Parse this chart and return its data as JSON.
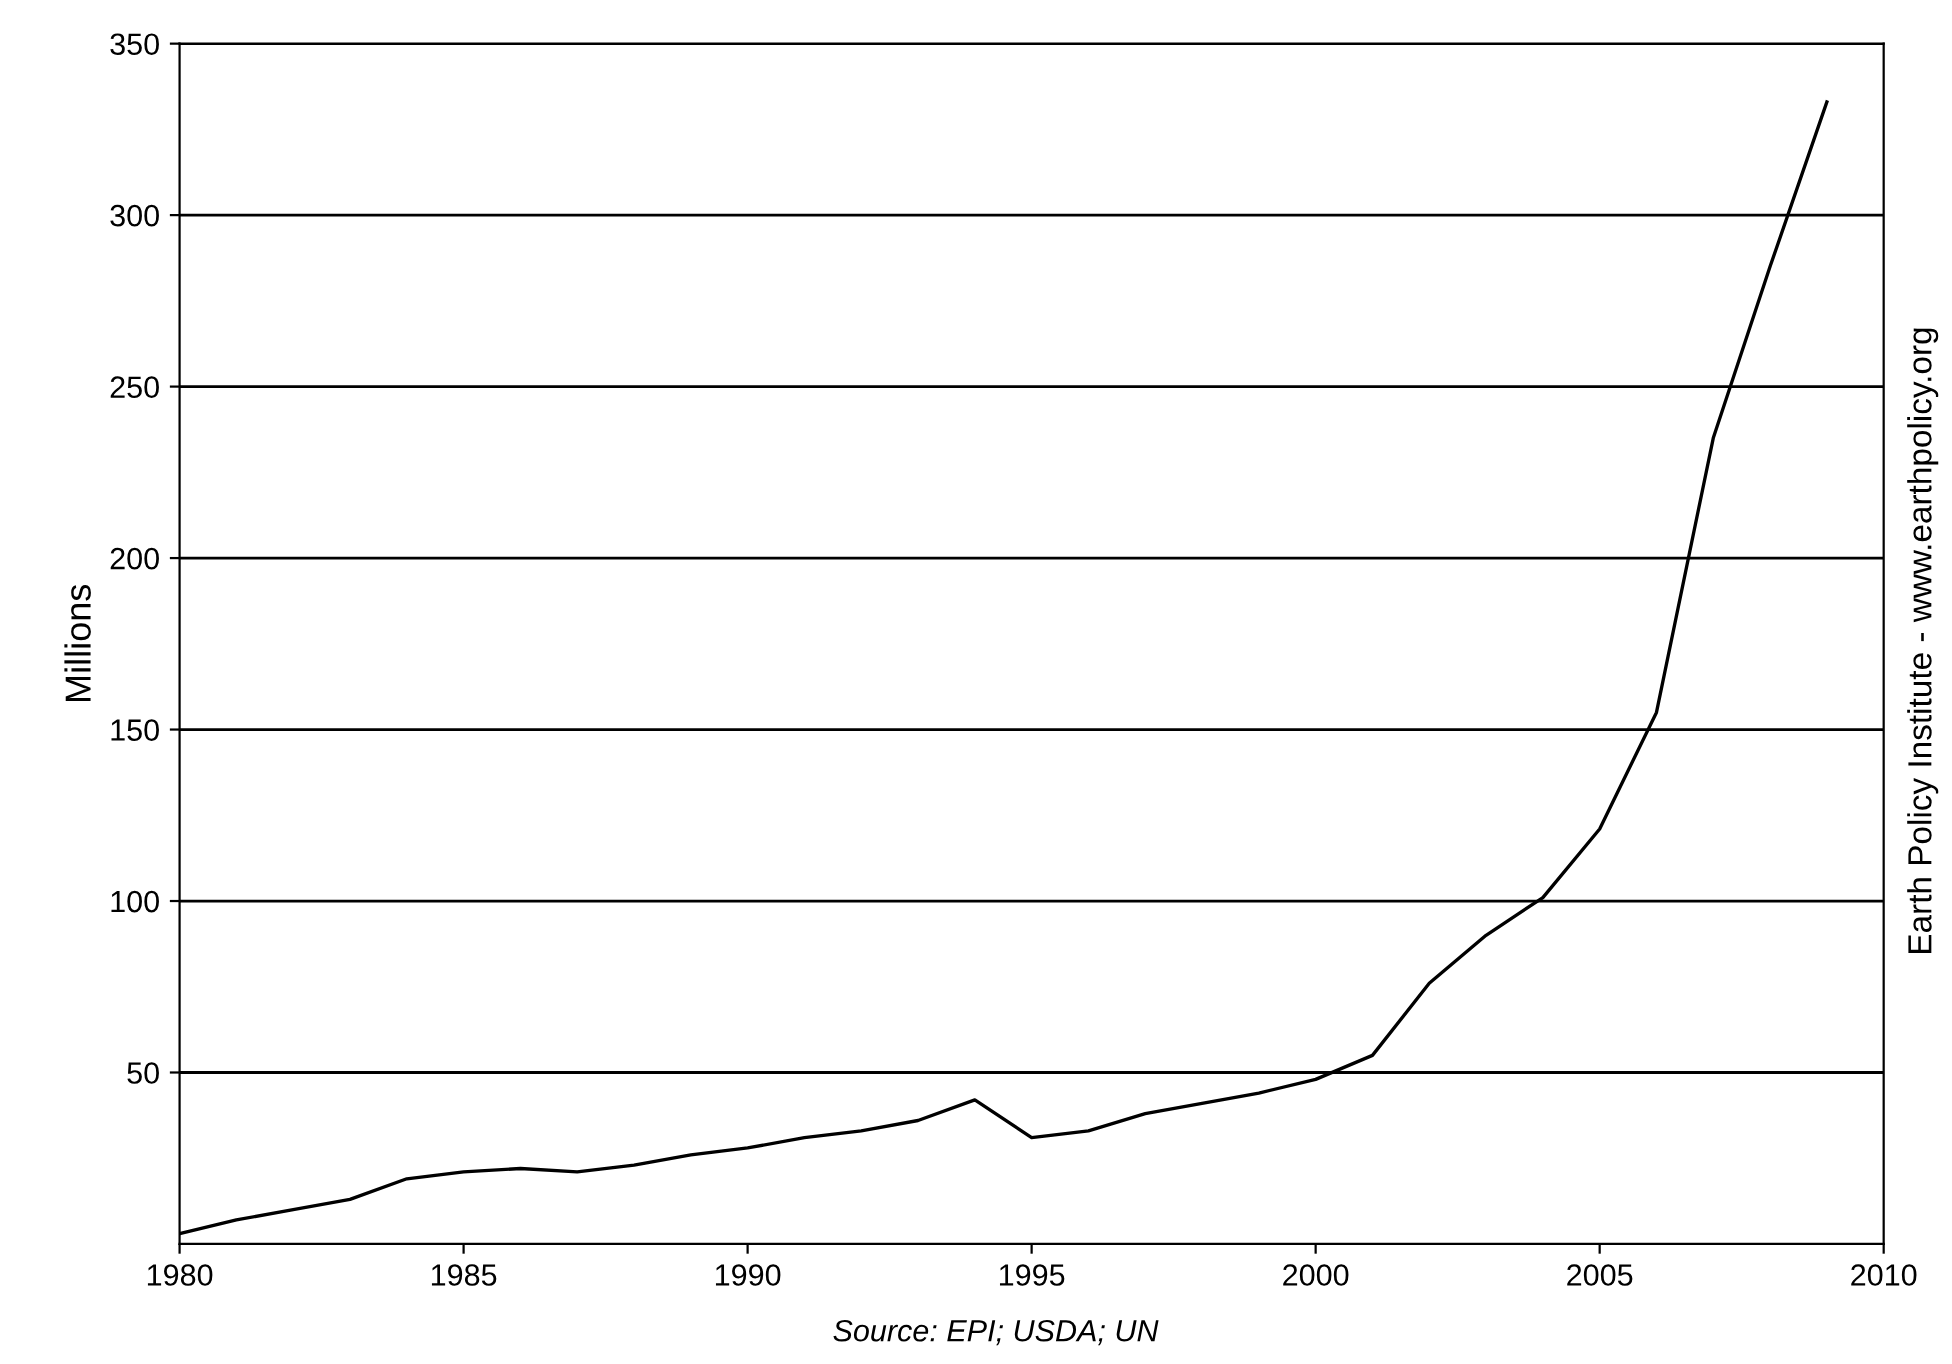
{
  "chart_data": {
    "type": "line",
    "ylabel": "Millions",
    "x": [
      1980,
      1981,
      1982,
      1983,
      1984,
      1985,
      1986,
      1987,
      1988,
      1989,
      1990,
      1991,
      1992,
      1993,
      1994,
      1995,
      1996,
      1997,
      1998,
      1999,
      2000,
      2001,
      2002,
      2003,
      2004,
      2005,
      2006,
      2007,
      2008,
      2009
    ],
    "series": [
      {
        "color": "#000000",
        "values": [
          3,
          7,
          10,
          13,
          19,
          21,
          22,
          21,
          23,
          26,
          28,
          31,
          33,
          36,
          42,
          31,
          33,
          38,
          41,
          44,
          48,
          55,
          76,
          90,
          101,
          121,
          155,
          235,
          285,
          333
        ]
      }
    ],
    "xlim": [
      1980,
      2010
    ],
    "xticks": [
      1980,
      1985,
      1990,
      1995,
      2000,
      2005,
      2010
    ],
    "ylim": [
      0,
      350
    ],
    "yticks": [
      50,
      100,
      150,
      200,
      250,
      300,
      350
    ],
    "grid": "y",
    "marker": "none",
    "line_style": "solid",
    "annotations": [
      "Source: EPI; USDA; UN",
      "Earth Policy Institute - www.earthpolicy.org"
    ]
  }
}
